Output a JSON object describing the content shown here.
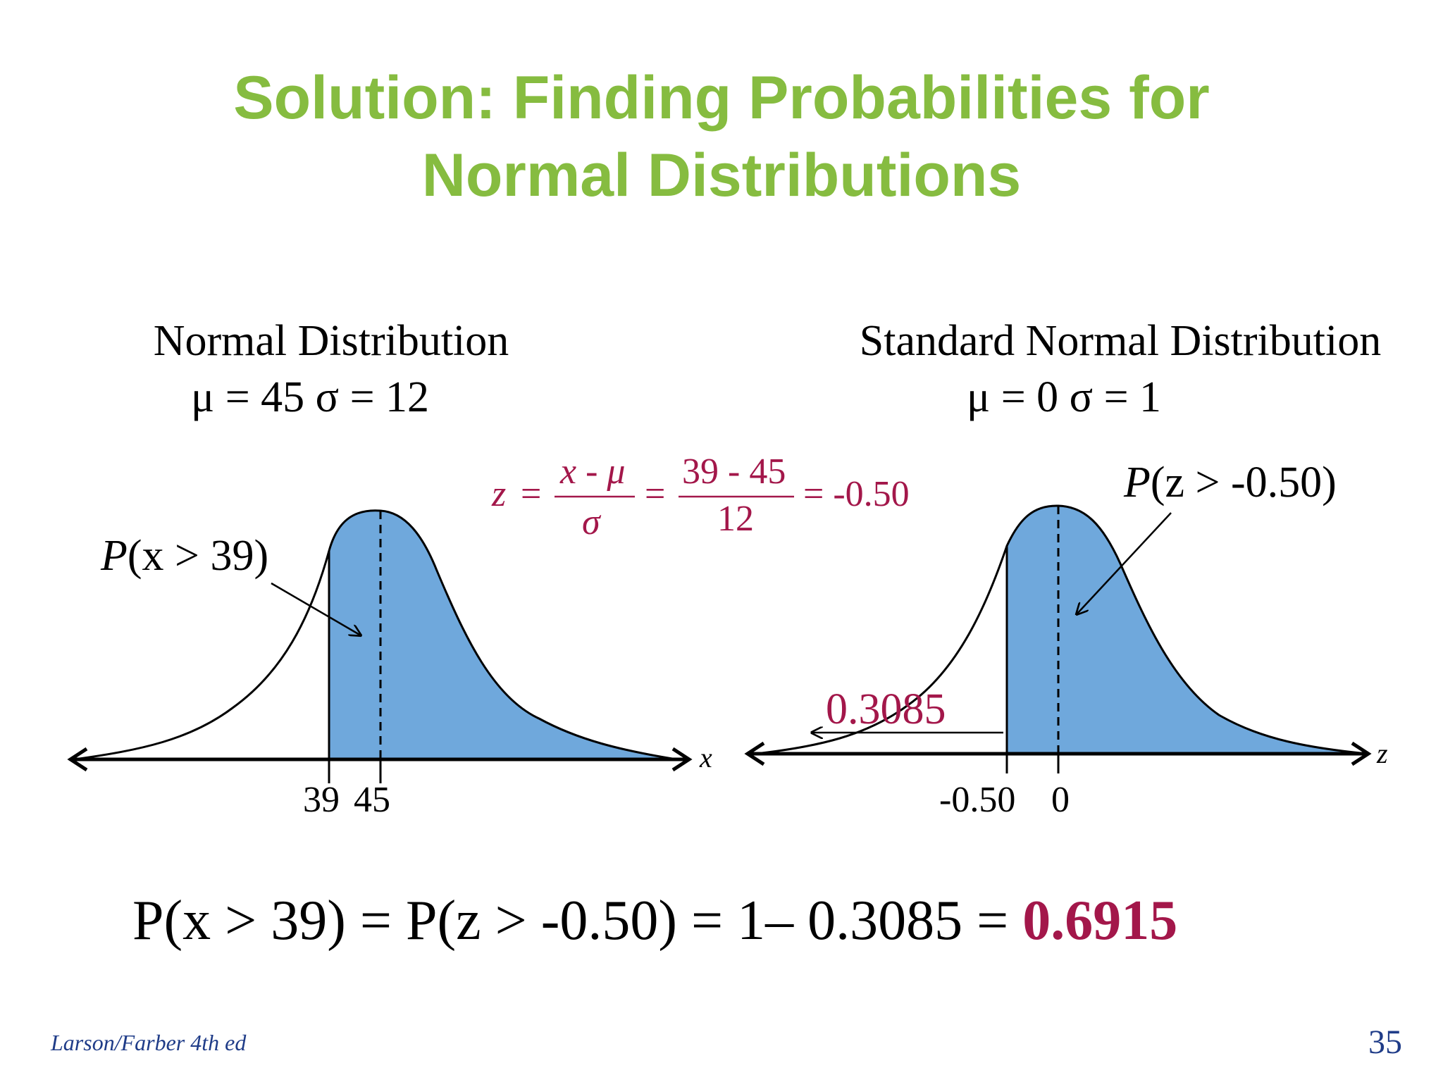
{
  "title": {
    "line1": "Solution:  Finding Probabilities for",
    "line2": "Normal Distributions"
  },
  "left_panel": {
    "heading": "Normal Distribution",
    "params": "μ = 45  σ = 12",
    "prob_label_prefix": "P",
    "prob_label_rest": "(x > 39)",
    "tick_39": "39",
    "tick_45": "45",
    "axis_var": "x"
  },
  "right_panel": {
    "heading": "Standard Normal Distribution",
    "params": "μ = 0  σ = 1",
    "prob_label_prefix": "P",
    "prob_label_rest": "(z > -0.50)",
    "tick_neg": "-0.50",
    "tick_0": "0",
    "axis_var": "z",
    "left_area": "0.3085"
  },
  "formula": {
    "z": "z",
    "eq": "=",
    "num1": "x - μ",
    "den1": "σ",
    "num2": "39 - 45",
    "den2": "12",
    "result": "= -0.50"
  },
  "conclusion": {
    "text": "P(x > 39) = P(z > -0.50) = 1– 0.3085 = ",
    "answer": "0.6915"
  },
  "footer": {
    "citation": "Larson/Farber 4th ed",
    "page": "35"
  },
  "colors": {
    "title_green": "#86bc40",
    "shade_blue": "#6fa8dc",
    "formula_red": "#a3174a",
    "footer_blue": "#1f3c88"
  }
}
